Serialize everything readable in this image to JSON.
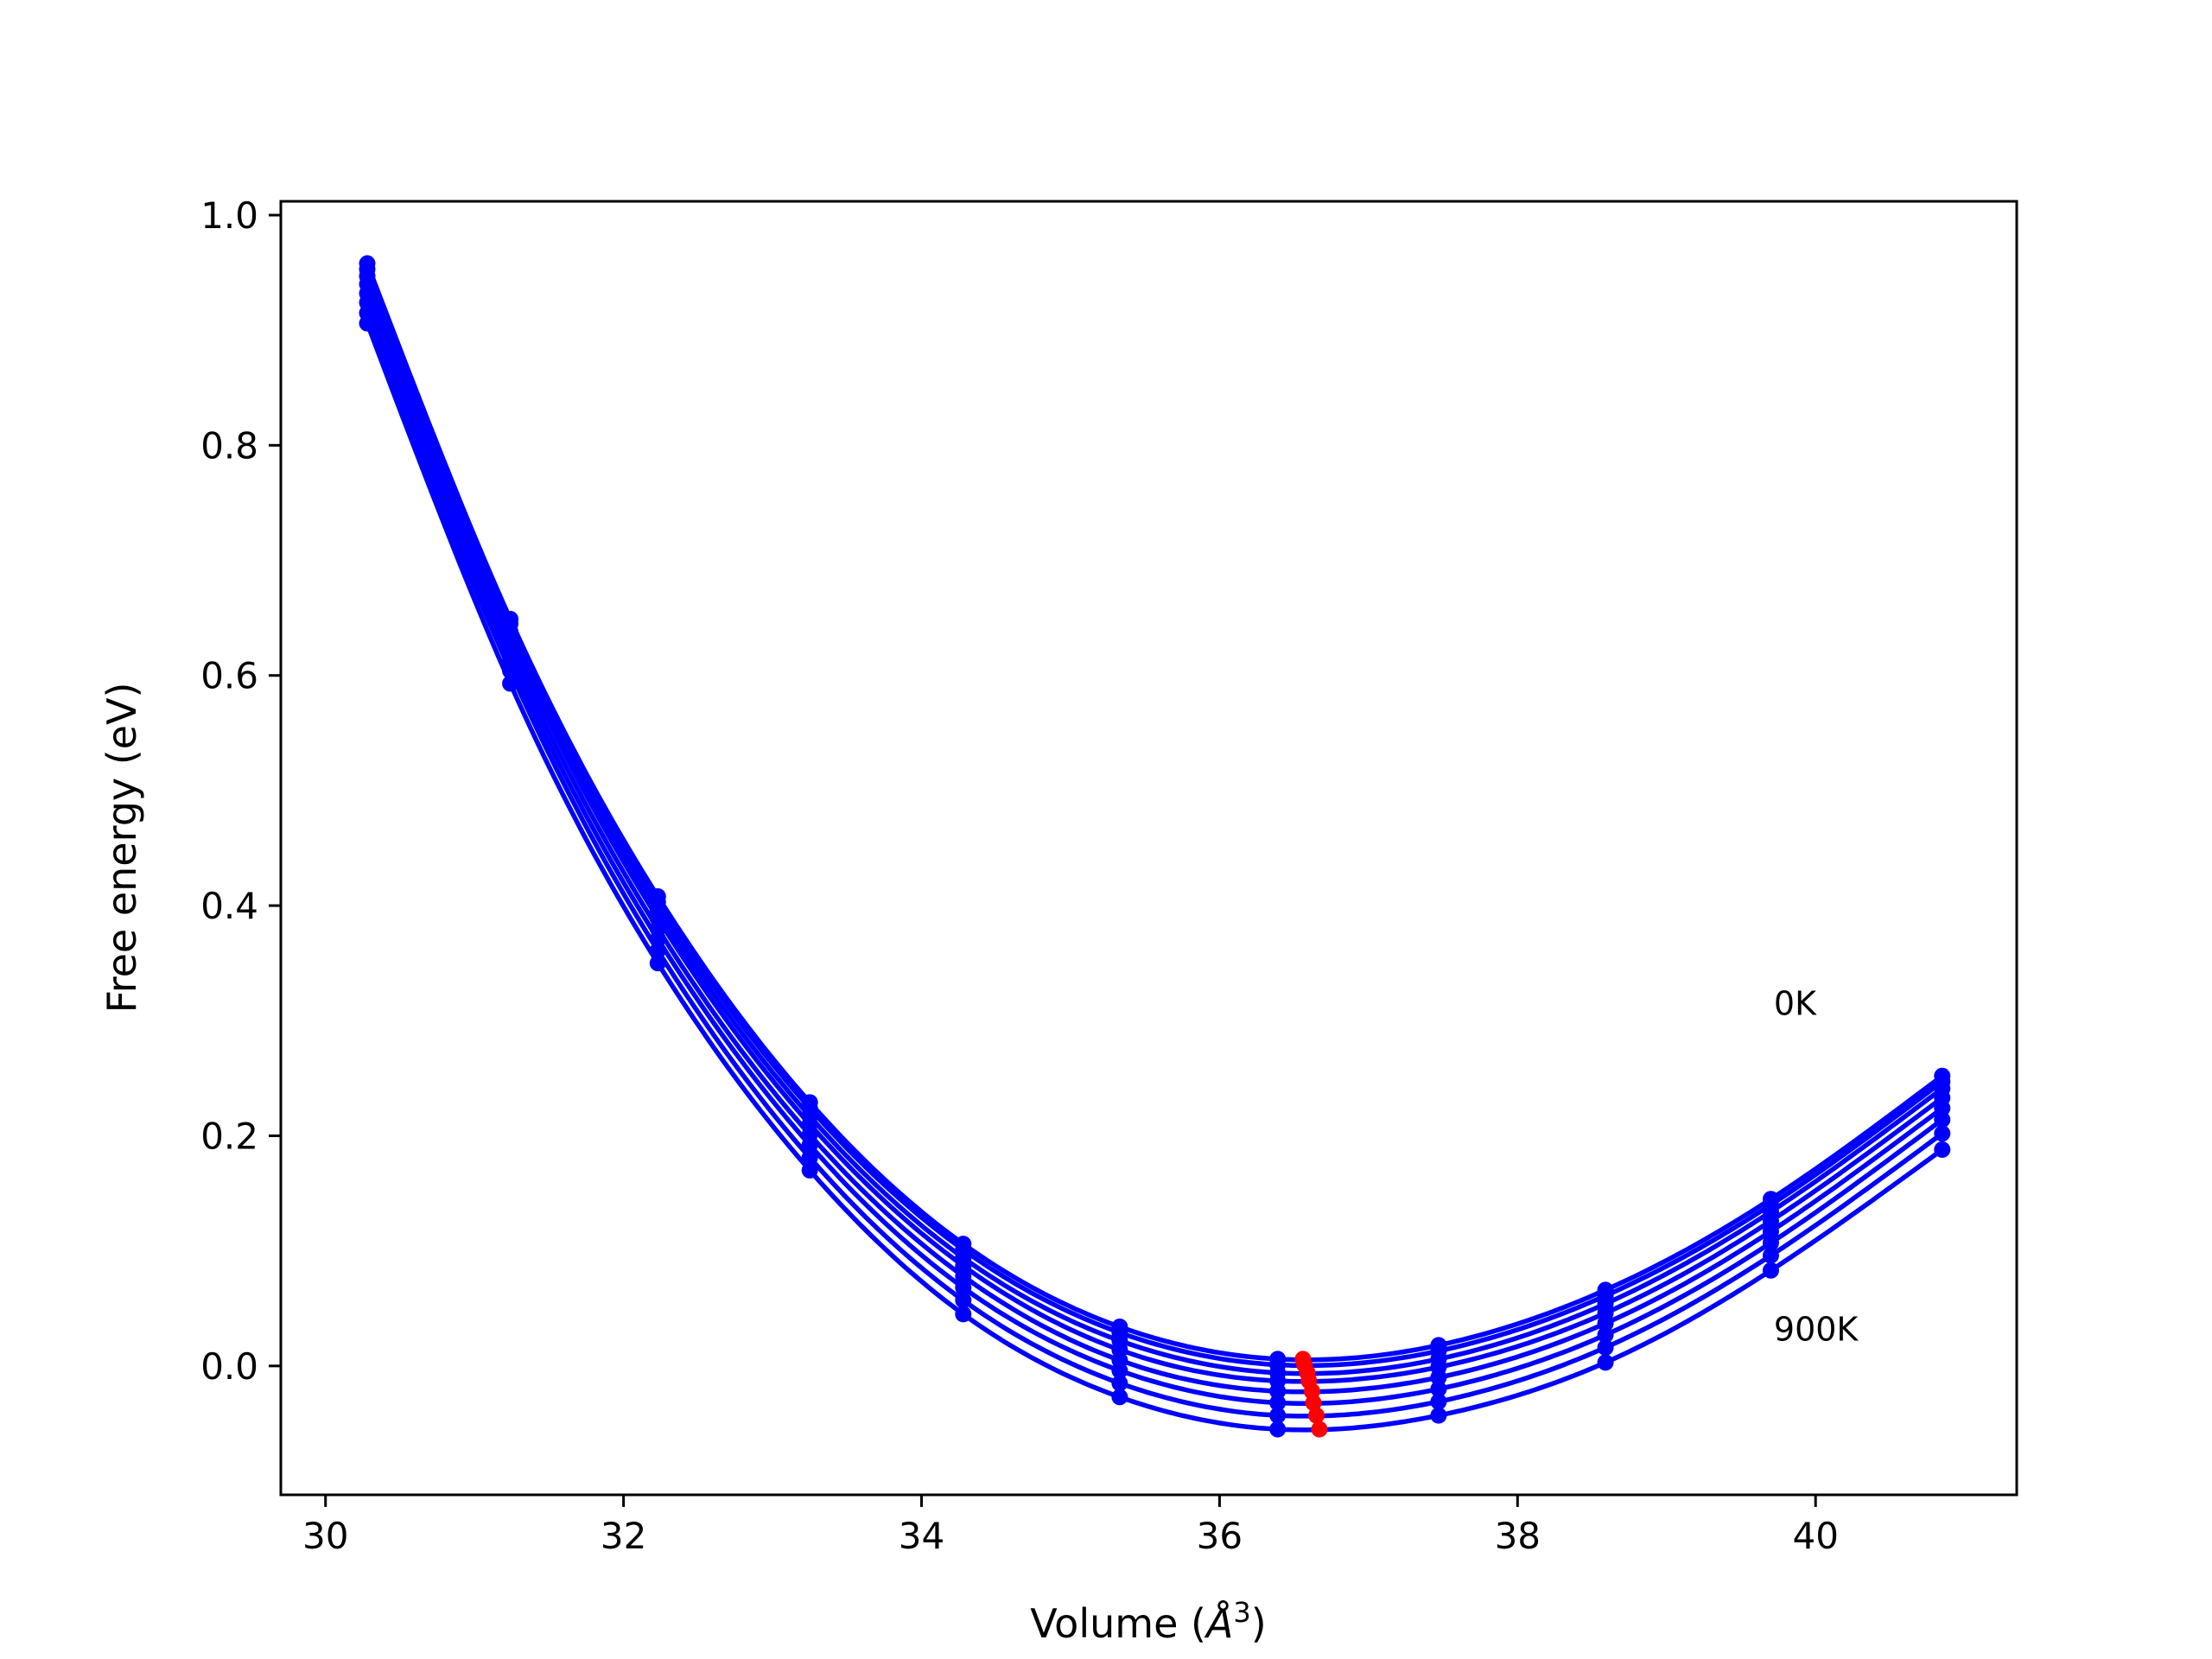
{
  "chart_data": {
    "type": "line",
    "xlabel_prefix": "Volume (",
    "xlabel_unit": "Å",
    "xlabel_exp": "3",
    "xlabel_suffix": ")",
    "ylabel": "Free energy (eV)",
    "xlim": [
      29.7,
      41.35
    ],
    "ylim": [
      -0.112,
      1.012
    ],
    "x_ticks": [
      30,
      32,
      34,
      36,
      38,
      40
    ],
    "y_ticks": [
      0.0,
      0.2,
      0.4,
      0.6,
      0.8,
      1.0
    ],
    "x_tick_labels": [
      "30",
      "32",
      "34",
      "36",
      "38",
      "40"
    ],
    "y_tick_labels": [
      "0.0",
      "0.2",
      "0.4",
      "0.6",
      "0.8",
      "1.0"
    ],
    "grid": false,
    "series_color": "#0000ff",
    "minimum_color": "#ff0000",
    "x": [
      30.28,
      31.24,
      32.23,
      33.25,
      34.28,
      35.33,
      36.39,
      37.47,
      38.59,
      39.7,
      40.85
    ],
    "series": [
      {
        "values": [
          0.958,
          0.649,
          0.408,
          0.229,
          0.106,
          0.034,
          0.006,
          0.018,
          0.066,
          0.145,
          0.252
        ]
      },
      {
        "values": [
          0.953,
          0.645,
          0.403,
          0.224,
          0.101,
          0.029,
          0.001,
          0.013,
          0.061,
          0.14,
          0.247
        ]
      },
      {
        "values": [
          0.947,
          0.638,
          0.396,
          0.217,
          0.094,
          0.022,
          -0.006,
          0.006,
          0.054,
          0.134,
          0.241
        ]
      },
      {
        "values": [
          0.94,
          0.631,
          0.389,
          0.21,
          0.087,
          0.014,
          -0.013,
          -0.001,
          0.046,
          0.126,
          0.233
        ]
      },
      {
        "values": [
          0.932,
          0.622,
          0.38,
          0.201,
          0.078,
          0.005,
          -0.022,
          -0.01,
          0.037,
          0.117,
          0.224
        ]
      },
      {
        "values": [
          0.924,
          0.613,
          0.371,
          0.192,
          0.068,
          -0.004,
          -0.032,
          -0.02,
          0.027,
          0.107,
          0.214
        ]
      },
      {
        "values": [
          0.915,
          0.604,
          0.361,
          0.181,
          0.057,
          -0.015,
          -0.043,
          -0.031,
          0.016,
          0.096,
          0.202
        ]
      },
      {
        "values": [
          0.906,
          0.593,
          0.35,
          0.17,
          0.045,
          -0.027,
          -0.055,
          -0.043,
          0.003,
          0.083,
          0.188
        ]
      }
    ],
    "minima": [
      {
        "x": 36.56,
        "y": 0.006
      },
      {
        "x": 36.57,
        "y": 0.001
      },
      {
        "x": 36.59,
        "y": -0.006
      },
      {
        "x": 36.6,
        "y": -0.013
      },
      {
        "x": 36.62,
        "y": -0.022
      },
      {
        "x": 36.63,
        "y": -0.032
      },
      {
        "x": 36.65,
        "y": -0.043
      },
      {
        "x": 36.67,
        "y": -0.055
      }
    ],
    "annotations": [
      {
        "text": "0K",
        "x": 39.72,
        "y": 0.305
      },
      {
        "text": "900K",
        "x": 39.72,
        "y": 0.022
      }
    ]
  }
}
